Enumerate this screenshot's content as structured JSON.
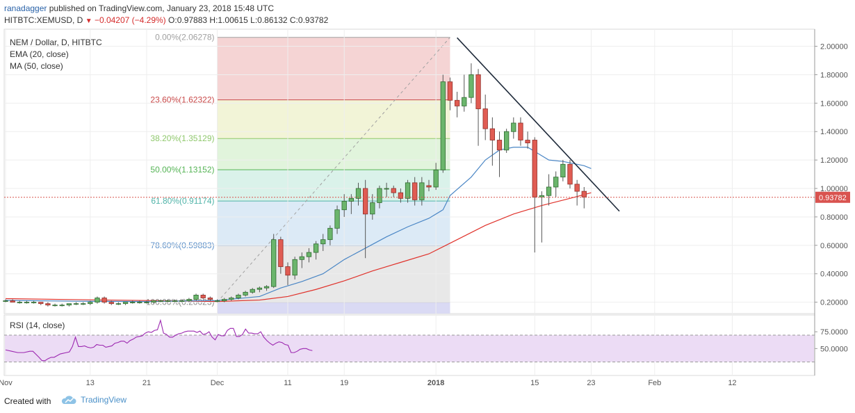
{
  "header": {
    "username": "ranadagger",
    "published_text": "published on TradingView.com, January 23, 2018 15:48 UTC",
    "ohlc_symbol": "HITBTC:XEMUSD, D",
    "change_arrow": "▼",
    "change_text": "−0.04207 (−4.29%)",
    "open": "O:0.97883",
    "high": "H:1.00615",
    "low": "L:0.86132",
    "close": "C:0.93782"
  },
  "legend": {
    "symbol": "NEM / Dollar, D, HITBTC",
    "ema": "EMA (20, close)",
    "ma": "MA (50, close)",
    "rsi": "RSI (14, close)"
  },
  "footer": {
    "created_with": "Created with",
    "brand": "TradingView"
  },
  "chart_data": {
    "type": "candlestick",
    "title": "NEM / Dollar, D, HITBTC",
    "last_price": 0.93782,
    "last_price_label": "0.93782",
    "y_range": [
      0.12,
      2.12
    ],
    "y_ticks": [
      "2.00000",
      "1.80000",
      "1.60000",
      "1.40000",
      "1.20000",
      "1.00000",
      "0.80000",
      "0.60000",
      "0.40000",
      "0.20000"
    ],
    "x_ticks": [
      {
        "label": "Nov",
        "day": 0
      },
      {
        "label": "13",
        "day": 12
      },
      {
        "label": "21",
        "day": 20
      },
      {
        "label": "Dec",
        "day": 30
      },
      {
        "label": "11",
        "day": 40
      },
      {
        "label": "19",
        "day": 48
      },
      {
        "label": "2018",
        "day": 61
      },
      {
        "label": "15",
        "day": 75
      },
      {
        "label": "23",
        "day": 83
      },
      {
        "label": "Feb",
        "day": 92
      },
      {
        "label": "12",
        "day": 103
      }
    ],
    "candles": [
      [
        0.21,
        0.22,
        0.2,
        0.21
      ],
      [
        0.21,
        0.22,
        0.2,
        0.2
      ],
      [
        0.2,
        0.21,
        0.19,
        0.2
      ],
      [
        0.2,
        0.21,
        0.19,
        0.2
      ],
      [
        0.2,
        0.21,
        0.19,
        0.2
      ],
      [
        0.2,
        0.2,
        0.18,
        0.19
      ],
      [
        0.19,
        0.2,
        0.17,
        0.18
      ],
      [
        0.18,
        0.19,
        0.17,
        0.18
      ],
      [
        0.18,
        0.19,
        0.17,
        0.18
      ],
      [
        0.18,
        0.19,
        0.17,
        0.19
      ],
      [
        0.19,
        0.2,
        0.18,
        0.19
      ],
      [
        0.19,
        0.2,
        0.18,
        0.19
      ],
      [
        0.19,
        0.21,
        0.18,
        0.2
      ],
      [
        0.2,
        0.24,
        0.19,
        0.23
      ],
      [
        0.23,
        0.24,
        0.19,
        0.2
      ],
      [
        0.2,
        0.21,
        0.18,
        0.19
      ],
      [
        0.19,
        0.2,
        0.18,
        0.19
      ],
      [
        0.19,
        0.2,
        0.18,
        0.2
      ],
      [
        0.2,
        0.21,
        0.19,
        0.2
      ],
      [
        0.2,
        0.21,
        0.19,
        0.2
      ],
      [
        0.2,
        0.21,
        0.19,
        0.2
      ],
      [
        0.2,
        0.21,
        0.19,
        0.21
      ],
      [
        0.21,
        0.22,
        0.2,
        0.21
      ],
      [
        0.21,
        0.22,
        0.2,
        0.21
      ],
      [
        0.21,
        0.22,
        0.2,
        0.21
      ],
      [
        0.21,
        0.22,
        0.2,
        0.21
      ],
      [
        0.21,
        0.23,
        0.2,
        0.22
      ],
      [
        0.22,
        0.26,
        0.21,
        0.25
      ],
      [
        0.25,
        0.26,
        0.22,
        0.23
      ],
      [
        0.23,
        0.24,
        0.21,
        0.22
      ],
      [
        0.21,
        0.22,
        0.2,
        0.21
      ],
      [
        0.21,
        0.23,
        0.2,
        0.22
      ],
      [
        0.22,
        0.24,
        0.21,
        0.23
      ],
      [
        0.23,
        0.26,
        0.22,
        0.25
      ],
      [
        0.25,
        0.28,
        0.24,
        0.27
      ],
      [
        0.27,
        0.3,
        0.26,
        0.29
      ],
      [
        0.29,
        0.31,
        0.27,
        0.3
      ],
      [
        0.3,
        0.32,
        0.28,
        0.31
      ],
      [
        0.31,
        0.68,
        0.3,
        0.64
      ],
      [
        0.64,
        0.66,
        0.4,
        0.45
      ],
      [
        0.45,
        0.48,
        0.32,
        0.39
      ],
      [
        0.39,
        0.52,
        0.36,
        0.5
      ],
      [
        0.5,
        0.55,
        0.44,
        0.52
      ],
      [
        0.52,
        0.58,
        0.48,
        0.55
      ],
      [
        0.55,
        0.63,
        0.5,
        0.61
      ],
      [
        0.61,
        0.68,
        0.56,
        0.64
      ],
      [
        0.64,
        0.74,
        0.6,
        0.72
      ],
      [
        0.72,
        0.88,
        0.68,
        0.85
      ],
      [
        0.85,
        0.96,
        0.8,
        0.91
      ],
      [
        0.91,
        0.96,
        0.82,
        0.93
      ],
      [
        0.93,
        1.04,
        0.88,
        1.0
      ],
      [
        1.0,
        1.06,
        0.51,
        0.82
      ],
      [
        0.82,
        0.96,
        0.78,
        0.9
      ],
      [
        0.9,
        1.02,
        0.86,
        1.0
      ],
      [
        1.0,
        1.04,
        0.94,
        1.0
      ],
      [
        1.0,
        1.02,
        0.94,
        0.97
      ],
      [
        0.97,
        1.0,
        0.9,
        0.93
      ],
      [
        0.93,
        1.06,
        0.9,
        1.04
      ],
      [
        1.04,
        1.08,
        0.88,
        0.92
      ],
      [
        0.92,
        1.08,
        0.88,
        1.04
      ],
      [
        1.02,
        1.06,
        0.98,
        1.01
      ],
      [
        1.01,
        1.18,
        0.99,
        1.13
      ],
      [
        1.13,
        1.8,
        1.11,
        1.75
      ],
      [
        1.75,
        1.78,
        1.55,
        1.62
      ],
      [
        1.62,
        1.68,
        1.5,
        1.58
      ],
      [
        1.58,
        1.8,
        1.54,
        1.64
      ],
      [
        1.64,
        1.88,
        1.6,
        1.8
      ],
      [
        1.8,
        1.84,
        1.3,
        1.56
      ],
      [
        1.56,
        1.66,
        1.34,
        1.42
      ],
      [
        1.42,
        1.5,
        1.16,
        1.34
      ],
      [
        1.34,
        1.4,
        1.08,
        1.27
      ],
      [
        1.27,
        1.42,
        1.25,
        1.4
      ],
      [
        1.4,
        1.5,
        1.35,
        1.46
      ],
      [
        1.46,
        1.5,
        1.3,
        1.34
      ],
      [
        1.34,
        1.4,
        1.28,
        1.32
      ],
      [
        1.34,
        1.36,
        0.55,
        0.94
      ],
      [
        0.94,
        0.98,
        0.62,
        0.95
      ],
      [
        0.95,
        1.1,
        0.88,
        1.01
      ],
      [
        1.01,
        1.12,
        0.94,
        1.08
      ],
      [
        1.08,
        1.2,
        1.05,
        1.17
      ],
      [
        1.17,
        1.2,
        1.0,
        1.03
      ],
      [
        1.03,
        1.06,
        0.88,
        0.98
      ],
      [
        0.98,
        1.01,
        0.86,
        0.94
      ]
    ],
    "ema20": [
      [
        0,
        0.213
      ],
      [
        10,
        0.207
      ],
      [
        20,
        0.205
      ],
      [
        30,
        0.212
      ],
      [
        36,
        0.24
      ],
      [
        39,
        0.3
      ],
      [
        42,
        0.345
      ],
      [
        45,
        0.4
      ],
      [
        48,
        0.5
      ],
      [
        51,
        0.58
      ],
      [
        54,
        0.66
      ],
      [
        57,
        0.73
      ],
      [
        60,
        0.79
      ],
      [
        62,
        0.85
      ],
      [
        63,
        0.95
      ],
      [
        66,
        1.08
      ],
      [
        68,
        1.2
      ],
      [
        70,
        1.27
      ],
      [
        72,
        1.29
      ],
      [
        74,
        1.29
      ],
      [
        75,
        1.26
      ],
      [
        77,
        1.2
      ],
      [
        79,
        1.19
      ],
      [
        82,
        1.16
      ],
      [
        83,
        1.14
      ]
    ],
    "ma50": [
      [
        0,
        0.225
      ],
      [
        10,
        0.218
      ],
      [
        20,
        0.212
      ],
      [
        30,
        0.205
      ],
      [
        36,
        0.215
      ],
      [
        40,
        0.24
      ],
      [
        44,
        0.29
      ],
      [
        48,
        0.35
      ],
      [
        52,
        0.42
      ],
      [
        56,
        0.48
      ],
      [
        60,
        0.54
      ],
      [
        64,
        0.64
      ],
      [
        68,
        0.74
      ],
      [
        72,
        0.82
      ],
      [
        76,
        0.88
      ],
      [
        80,
        0.93
      ],
      [
        83,
        0.97
      ]
    ],
    "fibonacci": {
      "from_day": 30,
      "to_day": 63,
      "levels": [
        {
          "label": "0.00%(2.06278)",
          "ratio": 0.0,
          "price": 2.06278,
          "color": "#a0a0a0",
          "fill": "#f3cccc"
        },
        {
          "label": "23.60%(1.62322)",
          "ratio": 0.236,
          "price": 1.62322,
          "color": "#c94a4a",
          "fill": "#f0f2d0"
        },
        {
          "label": "38.20%(1.35129)",
          "ratio": 0.382,
          "price": 1.35129,
          "color": "#8fc86c",
          "fill": "#dcf2d6"
        },
        {
          "label": "50.00%(1.13152)",
          "ratio": 0.5,
          "price": 1.13152,
          "color": "#55b455",
          "fill": "#d3f0e6"
        },
        {
          "label": "61.80%(0.91174)",
          "ratio": 0.618,
          "price": 0.91174,
          "color": "#4fb3a8",
          "fill": "#d6e6f4"
        },
        {
          "label": "78.60%(0.59883)",
          "ratio": 0.786,
          "price": 0.59883,
          "color": "#5b8fc8",
          "fill": "#e4e4e4"
        },
        {
          "label": "100.00%(0.20023)",
          "ratio": 1.0,
          "price": 0.20023,
          "color": "#888888",
          "fill": "#d4d4f2"
        }
      ]
    },
    "trendline": [
      [
        64,
        2.06
      ],
      [
        87,
        0.84
      ]
    ],
    "rsi": {
      "y_range": [
        10,
        100
      ],
      "y_ticks": [
        "75.0000",
        "50.0000"
      ],
      "upper": 70,
      "lower": 30,
      "values": [
        [
          0,
          48
        ],
        [
          2,
          46
        ],
        [
          4,
          44
        ],
        [
          6,
          44
        ],
        [
          8,
          46
        ],
        [
          9,
          46
        ],
        [
          11,
          37
        ],
        [
          12,
          32
        ],
        [
          13,
          32
        ],
        [
          14,
          35
        ],
        [
          15,
          37
        ],
        [
          16,
          37
        ],
        [
          18,
          42
        ],
        [
          20,
          44
        ],
        [
          21,
          45
        ],
        [
          22,
          53
        ],
        [
          23,
          67
        ],
        [
          24,
          53
        ],
        [
          25,
          53
        ],
        [
          26,
          54
        ],
        [
          27,
          52
        ],
        [
          28,
          51
        ],
        [
          29,
          52
        ],
        [
          30,
          56
        ],
        [
          31,
          55
        ],
        [
          32,
          55
        ],
        [
          33,
          52
        ],
        [
          34,
          53
        ],
        [
          35,
          54
        ],
        [
          36,
          58
        ],
        [
          37,
          59
        ],
        [
          38,
          61
        ],
        [
          39,
          61
        ],
        [
          40,
          58
        ],
        [
          41,
          62
        ],
        [
          42,
          64
        ],
        [
          43,
          67
        ],
        [
          44,
          68
        ],
        [
          45,
          69
        ],
        [
          46,
          73
        ],
        [
          47,
          75
        ],
        [
          48,
          74
        ],
        [
          49,
          77
        ],
        [
          50,
          78
        ],
        [
          51,
          92
        ],
        [
          52,
          73
        ],
        [
          53,
          71
        ],
        [
          54,
          67
        ],
        [
          55,
          67
        ],
        [
          56,
          70
        ],
        [
          57,
          72
        ],
        [
          58,
          73
        ],
        [
          59,
          75
        ],
        [
          60,
          76
        ],
        [
          61,
          76
        ],
        [
          62,
          76
        ],
        [
          63,
          74
        ],
        [
          64,
          76
        ],
        [
          65,
          71
        ],
        [
          66,
          72
        ],
        [
          67,
          75
        ],
        [
          68,
          67
        ],
        [
          69,
          63
        ],
        [
          70,
          71
        ],
        [
          71,
          69
        ],
        [
          72,
          69
        ],
        [
          73,
          77
        ],
        [
          74,
          80
        ],
        [
          75,
          80
        ],
        [
          76,
          68
        ],
        [
          77,
          68
        ],
        [
          78,
          71
        ],
        [
          79,
          79
        ],
        [
          80,
          73
        ],
        [
          81,
          73
        ],
        [
          82,
          72
        ],
        [
          83,
          72
        ],
        [
          84,
          75
        ],
        [
          85,
          67
        ],
        [
          86,
          62
        ],
        [
          87,
          58
        ],
        [
          88,
          55
        ],
        [
          89,
          58
        ],
        [
          90,
          60
        ],
        [
          91,
          59
        ],
        [
          92,
          56
        ],
        [
          93,
          55
        ],
        [
          94,
          44
        ],
        [
          95,
          44
        ],
        [
          96,
          46
        ],
        [
          97,
          49
        ],
        [
          98,
          50
        ],
        [
          99,
          50
        ],
        [
          100,
          48
        ],
        [
          101,
          47
        ]
      ]
    }
  }
}
